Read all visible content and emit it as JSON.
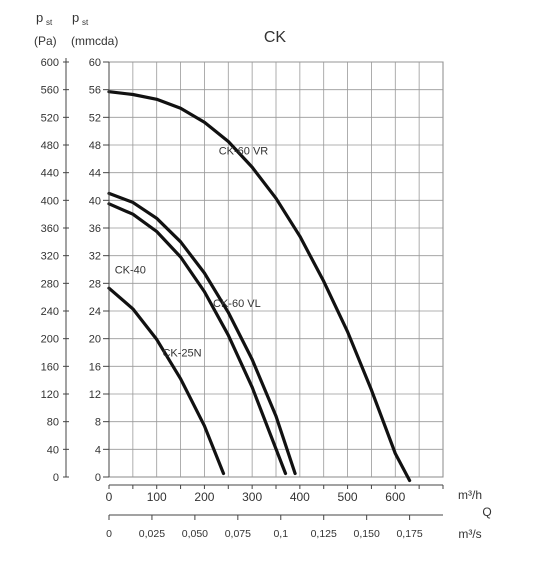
{
  "chart_data": {
    "type": "line",
    "title": "CK",
    "y_left_label": [
      "p",
      "st",
      "(Pa)"
    ],
    "y_right_label": [
      "p",
      "st",
      "(mmcda)"
    ],
    "y_left_ticks": [
      0,
      40,
      80,
      120,
      160,
      200,
      240,
      280,
      320,
      360,
      400,
      440,
      480,
      520,
      560,
      600
    ],
    "y_right_ticks": [
      0,
      4,
      8,
      12,
      16,
      20,
      24,
      28,
      32,
      36,
      40,
      44,
      48,
      52,
      56,
      60
    ],
    "x_ticks_m3h": [
      0,
      100,
      200,
      300,
      400,
      500,
      600
    ],
    "x_ticks_m3s": [
      "0",
      "0,025",
      "0,050",
      "0,075",
      "0,1",
      "0,125",
      "0,150",
      "0,175"
    ],
    "x_ticks_m3s_values": [
      0,
      0.025,
      0.05,
      0.075,
      0.1,
      0.125,
      0.15,
      0.175
    ],
    "x_unit_m3h": "m³/h",
    "x_label_q": "Q",
    "x_unit_m3s": "m³/s",
    "ylim": [
      0,
      60
    ],
    "xlim": [
      0,
      700
    ],
    "grid": true,
    "series": [
      {
        "name": "CK-60 VR",
        "x": [
          0,
          50,
          100,
          150,
          200,
          250,
          300,
          350,
          400,
          450,
          500,
          550,
          600,
          630
        ],
        "y": [
          55.7,
          55.3,
          54.6,
          53.3,
          51.3,
          48.5,
          44.8,
          40.3,
          34.8,
          28.3,
          21.0,
          12.6,
          3.4,
          -0.5
        ]
      },
      {
        "name": "CK-60 VL",
        "x": [
          0,
          50,
          100,
          150,
          200,
          250,
          300,
          350,
          390
        ],
        "y": [
          41.0,
          39.7,
          37.4,
          34.0,
          29.5,
          23.8,
          17.0,
          8.8,
          0.5
        ]
      },
      {
        "name": "CK-40",
        "x": [
          0,
          50,
          100,
          150,
          200,
          250,
          300,
          370
        ],
        "y": [
          39.5,
          38.0,
          35.5,
          31.8,
          26.8,
          20.5,
          13.0,
          0.5
        ]
      },
      {
        "name": "CK-25N",
        "x": [
          0,
          50,
          100,
          150,
          200,
          240
        ],
        "y": [
          27.3,
          24.3,
          19.9,
          14.2,
          7.4,
          0.5
        ]
      }
    ],
    "series_label_pos": [
      [
        230,
        46.6
      ],
      [
        218,
        24.6
      ],
      [
        12,
        29.4
      ],
      [
        112,
        17.4
      ]
    ]
  }
}
